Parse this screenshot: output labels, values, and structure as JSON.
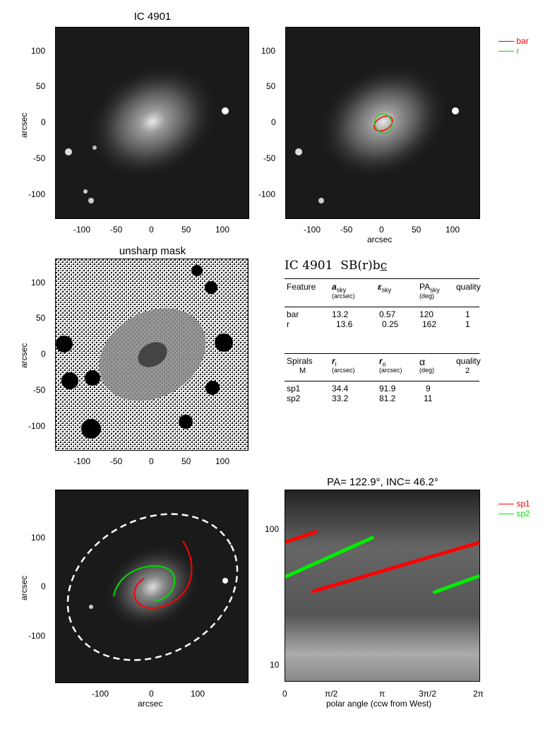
{
  "panel_tl": {
    "title": "IC 4901",
    "ylabel": "arcsec",
    "xticks": [
      "-100",
      "-50",
      "0",
      "50",
      "100"
    ],
    "yticks": [
      "100",
      "50",
      "0",
      "-50",
      "-100"
    ]
  },
  "panel_tr": {
    "xlabel": "arcsec",
    "xticks": [
      "-100",
      "-50",
      "0",
      "50",
      "100"
    ],
    "yticks": [
      "100",
      "50",
      "0",
      "-50",
      "-100"
    ],
    "legend": [
      {
        "label": "bar",
        "color": "#ff0000"
      },
      {
        "label": "r",
        "color": "#00dd00"
      }
    ]
  },
  "panel_ml": {
    "title": "unsharp mask",
    "ylabel": "arcsec",
    "xticks": [
      "-100",
      "-50",
      "0",
      "50",
      "100"
    ],
    "yticks": [
      "100",
      "50",
      "0",
      "-50",
      "-100"
    ]
  },
  "table": {
    "title_name": "IC 4901",
    "title_type": "SB(r)b",
    "title_suffix": "c",
    "feature_header": {
      "c1": "Feature",
      "c2": "a",
      "c2sub": "sky",
      "c2unit": "(arcsec)",
      "c3": "ε",
      "c3sub": "sky",
      "c4": "PA",
      "c4sub": "sky",
      "c4unit": "(deg)",
      "c5": "quality"
    },
    "features": [
      {
        "name": "bar",
        "a": "13.2",
        "e": "0.57",
        "pa": "120",
        "q": "1"
      },
      {
        "name": "r",
        "a": "13.6",
        "e": "0.25",
        "pa": "162",
        "q": "1"
      }
    ],
    "spiral_header": {
      "c1": "Spirals",
      "c1b": "M",
      "c2": "r",
      "c2sub": "i",
      "c2unit": "(arcsec)",
      "c3": "r",
      "c3sub": "o",
      "c3unit": "(arcsec)",
      "c4": "α",
      "c4unit": "(deg)",
      "c5": "quality",
      "c5b": "2"
    },
    "spirals": [
      {
        "name": "sp1",
        "ri": "34.4",
        "ro": "91.9",
        "alpha": "9"
      },
      {
        "name": "sp2",
        "ri": "33.2",
        "ro": "81.2",
        "alpha": "11"
      }
    ]
  },
  "panel_bl": {
    "xlabel": "arcsec",
    "ylabel": "arcsec",
    "xticks": [
      "-100",
      "0",
      "100"
    ],
    "yticks": [
      "100",
      "0",
      "-100"
    ]
  },
  "chart_data": {
    "type": "line",
    "title": "PA= 122.9°, INC=  46.2°",
    "xlabel": "polar angle (ccw from West)",
    "ylabel": "",
    "xticks": [
      "0",
      "π/2",
      "π",
      "3π/2",
      "2π"
    ],
    "yticks": [
      "100",
      "10"
    ],
    "xlim": [
      0,
      6.2832
    ],
    "ylim": [
      7,
      190
    ],
    "yscale": "log",
    "series": [
      {
        "name": "sp1",
        "color": "#ff0000",
        "segments": [
          [
            [
              0,
              78
            ],
            [
              1.0,
              93
            ]
          ],
          [
            [
              0.9,
              33.5
            ],
            [
              6.283,
              78
            ]
          ]
        ]
      },
      {
        "name": "sp2",
        "color": "#00ee00",
        "segments": [
          [
            [
              0,
              43
            ],
            [
              2.8,
              84
            ]
          ],
          [
            [
              4.8,
              33
            ],
            [
              6.283,
              44
            ]
          ]
        ]
      }
    ]
  }
}
